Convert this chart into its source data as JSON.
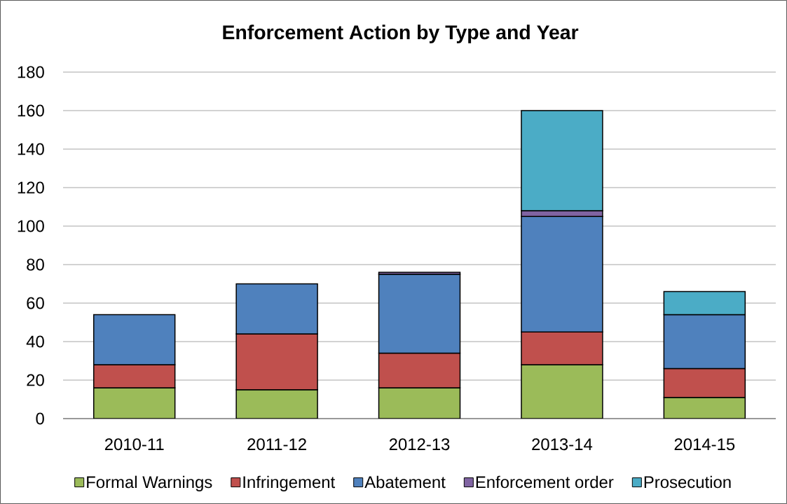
{
  "chart_data": {
    "type": "bar",
    "title": "Enforcement Action by Type and Year",
    "categories": [
      "2010-11",
      "2011-12",
      "2012-13",
      "2013-14",
      "2014-15"
    ],
    "stacked": true,
    "series": [
      {
        "name": "Formal Warnings",
        "color": "#9bbb59",
        "values": [
          16,
          15,
          16,
          28,
          11
        ]
      },
      {
        "name": "Infringement",
        "color": "#c0504d",
        "values": [
          12,
          29,
          18,
          17,
          15
        ]
      },
      {
        "name": "Abatement",
        "color": "#4f81bd",
        "values": [
          26,
          26,
          41,
          60,
          28
        ]
      },
      {
        "name": "Enforcement order",
        "color": "#8064a2",
        "values": [
          null,
          null,
          1,
          3,
          null
        ]
      },
      {
        "name": "Prosecution",
        "color": "#4bacc6",
        "values": [
          null,
          null,
          null,
          52,
          12
        ]
      }
    ],
    "ylim": [
      0,
      180
    ],
    "yticks": [
      0,
      20,
      40,
      60,
      80,
      100,
      120,
      140,
      160,
      180
    ],
    "grid": "y",
    "legend": "bottom"
  }
}
